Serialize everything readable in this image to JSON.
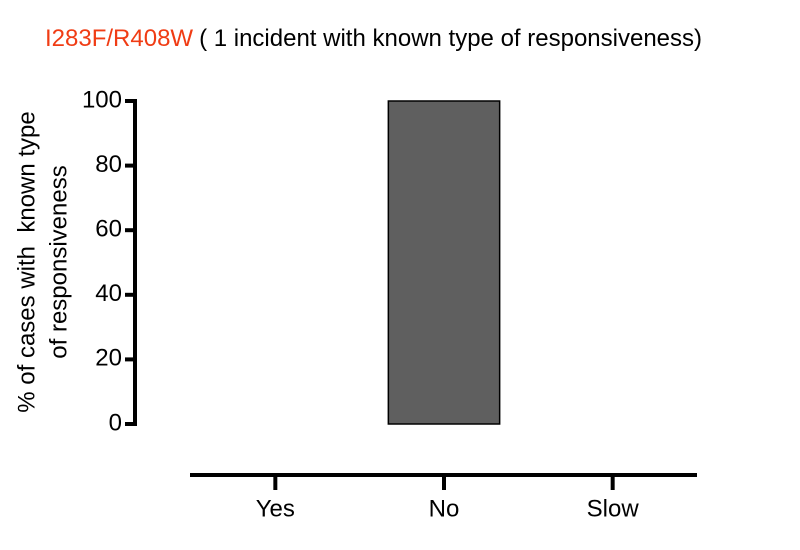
{
  "chart_data": {
    "type": "bar",
    "title": "I283F/R408W",
    "title_color": "#f03c14",
    "subtitle": "( 1 incident with known type of responsiveness)",
    "ylabel": [
      "% of cases with  known type",
      "of responsiveness"
    ],
    "categories": [
      "Yes",
      "No",
      "Slow"
    ],
    "values": [
      0,
      100,
      0
    ],
    "color": "#5f5f5f",
    "ylim": [
      0,
      100
    ],
    "yticks": [
      0,
      20,
      40,
      60,
      80,
      100
    ],
    "grid": false
  }
}
